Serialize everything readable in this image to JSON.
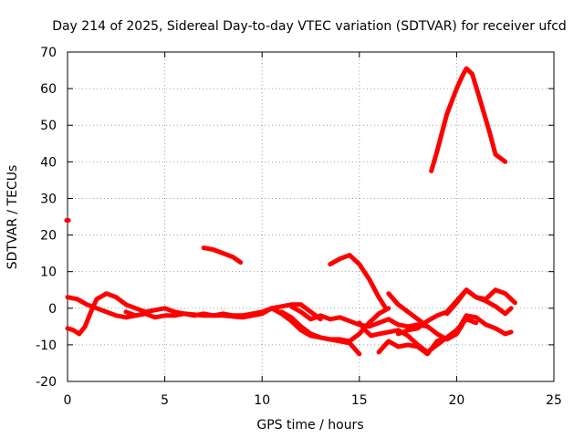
{
  "chart_data": {
    "type": "line",
    "title": "Day 214 of 2025, Sidereal Day-to-day VTEC variation (SDTVAR) for receiver ufcd",
    "xlabel": "GPS time / hours",
    "ylabel": "SDTVAR / TECUs",
    "xlim": [
      0,
      25
    ],
    "ylim": [
      -20,
      70
    ],
    "xticks": [
      0,
      5,
      10,
      15,
      20,
      25
    ],
    "yticks": [
      -20,
      -10,
      0,
      10,
      20,
      30,
      40,
      50,
      60,
      70
    ],
    "grid": true,
    "color": "#ff0000",
    "series": [
      {
        "name": "arc-a",
        "x": [
          0.0,
          0.5,
          1.0,
          1.5,
          2.0,
          2.5,
          3.0,
          3.5,
          4.0
        ],
        "y": [
          3.0,
          2.5,
          1.0,
          0.0,
          -1.0,
          -2.0,
          -2.5,
          -2.0,
          -1.5
        ]
      },
      {
        "name": "arc-b",
        "x": [
          0.0,
          0.3,
          0.6,
          0.9,
          1.2,
          1.5,
          2.0,
          2.5,
          3.0,
          3.5,
          4.0,
          4.5,
          5.0,
          5.5,
          6.0,
          7.0,
          8.0,
          9.0,
          10.0,
          10.5
        ],
        "y": [
          -5.5,
          -6.0,
          -7.0,
          -5.0,
          -1.0,
          2.5,
          4.0,
          3.0,
          1.0,
          0.0,
          -1.0,
          -0.5,
          0.0,
          -1.0,
          -1.5,
          -2.0,
          -2.0,
          -2.5,
          -1.5,
          0.0
        ]
      },
      {
        "name": "arc-c",
        "x": [
          3.0,
          3.5,
          4.0,
          4.5,
          5.0,
          5.5,
          6.0,
          6.5,
          7.0,
          7.5,
          8.0,
          8.5,
          9.0,
          9.5,
          10.0,
          10.5,
          11.0,
          11.5,
          12.0,
          12.5,
          13.0
        ],
        "y": [
          -1.0,
          -2.0,
          -1.5,
          -2.5,
          -2.0,
          -2.0,
          -1.5,
          -2.0,
          -1.5,
          -2.0,
          -1.5,
          -2.0,
          -2.0,
          -1.5,
          -1.0,
          0.0,
          0.5,
          1.0,
          1.0,
          -1.0,
          -3.0
        ]
      },
      {
        "name": "arc-d",
        "x": [
          7.0,
          7.5,
          8.0,
          8.5,
          8.9
        ],
        "y": [
          16.5,
          16.0,
          15.0,
          14.0,
          12.5
        ]
      },
      {
        "name": "arc-e",
        "x": [
          10.5,
          11.0,
          11.5,
          12.0,
          12.5,
          13.0,
          13.5,
          14.0,
          14.5,
          15.0
        ],
        "y": [
          0.0,
          -1.5,
          -3.5,
          -6.0,
          -7.5,
          -8.0,
          -8.5,
          -9.0,
          -9.5,
          -12.5
        ]
      },
      {
        "name": "arc-f",
        "x": [
          11.0,
          11.5,
          12.0,
          12.5,
          13.0,
          13.5,
          14.0,
          14.5,
          15.0,
          15.5,
          16.0,
          16.5
        ],
        "y": [
          -1.0,
          -2.5,
          -5.0,
          -7.0,
          -8.0,
          -8.5,
          -8.5,
          -9.0,
          -7.0,
          -4.0,
          -1.5,
          0.0
        ]
      },
      {
        "name": "arc-g",
        "x": [
          11.5,
          12.0,
          12.5,
          13.0,
          13.5,
          14.0,
          14.5,
          15.0,
          15.5,
          16.0,
          16.5,
          17.0,
          17.5,
          18.0,
          18.5
        ],
        "y": [
          0.5,
          -1.0,
          -3.0,
          -2.0,
          -3.0,
          -2.5,
          -3.5,
          -4.5,
          -5.0,
          -4.0,
          -3.0,
          -4.5,
          -5.0,
          -4.5,
          -5.0
        ]
      },
      {
        "name": "arc-h",
        "x": [
          13.5,
          14.0,
          14.5,
          15.0,
          15.5,
          16.0,
          16.3
        ],
        "y": [
          12.0,
          13.5,
          14.5,
          12.0,
          8.0,
          3.0,
          0.5
        ]
      },
      {
        "name": "arc-i",
        "x": [
          15.0,
          15.3,
          15.6,
          16.0,
          16.5,
          17.0,
          17.5,
          18.0,
          18.5,
          19.0,
          19.5,
          20.0,
          20.5,
          21.0,
          21.5,
          22.0,
          22.5,
          22.8
        ],
        "y": [
          -4.0,
          -6.0,
          -7.5,
          -7.0,
          -6.5,
          -6.0,
          -7.5,
          -10.0,
          -12.0,
          -10.0,
          -8.0,
          -6.5,
          -2.0,
          -2.5,
          -4.5,
          -5.5,
          -7.0,
          -6.5
        ]
      },
      {
        "name": "arc-j",
        "x": [
          16.0,
          16.5,
          17.0,
          17.5,
          18.0,
          18.5,
          19.0,
          19.5,
          20.0,
          20.5,
          21.0
        ],
        "y": [
          -12.0,
          -9.0,
          -10.5,
          -10.0,
          -10.5,
          -12.5,
          -9.0,
          -8.0,
          -6.0,
          -3.0,
          -4.0
        ]
      },
      {
        "name": "arc-k",
        "x": [
          16.5,
          17.0,
          17.5,
          18.0,
          18.5,
          19.0,
          19.5,
          20.0,
          20.3
        ],
        "y": [
          4.0,
          1.0,
          -1.0,
          -3.0,
          -5.0,
          -7.0,
          -8.5,
          -7.0,
          -4.5
        ]
      },
      {
        "name": "arc-l",
        "x": [
          17.0,
          17.5,
          18.0,
          18.5,
          19.0,
          19.5,
          20.0,
          20.5,
          21.0,
          21.5,
          22.0,
          22.5,
          22.8
        ],
        "y": [
          -7.0,
          -6.0,
          -5.5,
          -3.5,
          -2.0,
          -1.0,
          2.0,
          5.0,
          3.0,
          2.0,
          0.5,
          -1.5,
          0.0
        ]
      },
      {
        "name": "arc-m",
        "x": [
          19.5,
          20.0,
          20.5,
          21.0,
          21.5,
          22.0,
          22.5,
          23.0
        ],
        "y": [
          -1.5,
          1.5,
          5.0,
          3.0,
          2.5,
          5.0,
          4.0,
          1.5
        ]
      },
      {
        "name": "arc-n",
        "x": [
          18.7,
          19.0,
          19.5,
          20.0,
          20.3,
          20.5,
          20.8,
          21.2,
          21.7,
          22.0,
          22.5
        ],
        "y": [
          37.5,
          43.0,
          53.0,
          60.0,
          63.5,
          65.5,
          64.0,
          57.0,
          48.0,
          42.0,
          40.0
        ]
      },
      {
        "name": "stray-mark",
        "x": [
          -0.05,
          0.05
        ],
        "y": [
          24.0,
          24.0
        ]
      }
    ]
  }
}
